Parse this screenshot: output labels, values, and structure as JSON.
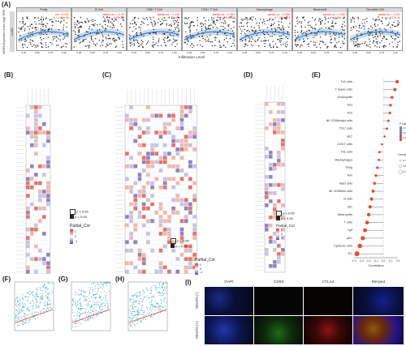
{
  "panels": {
    "A": {
      "label": "(A)",
      "ylabel": "VEGFA Expression Level (log2 TPM)",
      "xlabel": "Infiltration Level",
      "row_label": "LUAD",
      "subpanels": [
        {
          "title": "Purity",
          "l1": "cor = 0.202",
          "l2": "p = 1.54e-05"
        },
        {
          "title": "B Cell",
          "l1": "partial.cor = -0.25",
          "l2": "p = 2.45e-08"
        },
        {
          "title": "CD8+ T Cell",
          "l1": "partial.cor = 0.145",
          "l2": "p = 7.32e-03"
        },
        {
          "title": "CD4+ T Cell",
          "l1": "partial.cor = 0.364",
          "l2": "p = 1.61e-13"
        },
        {
          "title": "Macrophage",
          "l1": "partial.cor = 0.286",
          "l2": "p = 2.84e-14"
        },
        {
          "title": "Neutrophil",
          "l1": "partial.cor = 0.286",
          "l2": "p = 5.18e-14"
        },
        {
          "title": "Dendritic Cell",
          "l1": "partial.cor = 0.331",
          "l2": "p = 3.07e-10"
        }
      ],
      "x_ticks": [
        "0.25",
        "0.50",
        "0.75",
        "1.00"
      ]
    },
    "B": {
      "label": "(B)"
    },
    "C": {
      "label": "(C)"
    },
    "D": {
      "label": "(D)"
    },
    "E": {
      "label": "(E)"
    },
    "F": {
      "label": "(F)"
    },
    "G": {
      "label": "(G)"
    },
    "H": {
      "label": "(H)"
    },
    "I": {
      "label": "(I)"
    }
  },
  "heat_legend": {
    "sig_label": "p ≥ 0.05",
    "nonsig_label": "p < 0.05",
    "title": "Partial_Cor",
    "ticks": [
      "1",
      "0",
      "-1"
    ]
  },
  "E_chart": {
    "cells": [
      "Th2 cells",
      "T helper cells",
      "Eosinophils",
      "TFH",
      "Tcm",
      "NK CD56bright cells",
      "Th17 cells",
      "aDC",
      "CD8 T cells",
      "Th1 cells",
      "Macrophages",
      "TReg",
      "Tem",
      "Mast cells",
      "NK CD56dim cells",
      "B cells",
      "iDC",
      "Neutrophils",
      "T cells",
      "Tgd",
      "pDC",
      "Cytotoxic cells",
      "DC"
    ],
    "xlabel": "Correlation",
    "x_ticks": [
      "-0.4",
      "-0.3",
      "-0.2",
      "-0.1",
      "0.0",
      "0.1",
      "0.2"
    ],
    "legend_p_title": "P value",
    "legend_p_ticks": [
      "0.75",
      "0.50",
      "0.25"
    ],
    "legend_c_title": "Correlation",
    "legend_c_ticks": [
      "0.1",
      "0.2",
      "0.3"
    ]
  },
  "I_panel": {
    "cols": [
      "DAPI",
      "CD86",
      "CTLA4",
      "Merged"
    ],
    "rows": [
      "VEGFA (-)",
      "VEGFA (+)"
    ]
  }
}
